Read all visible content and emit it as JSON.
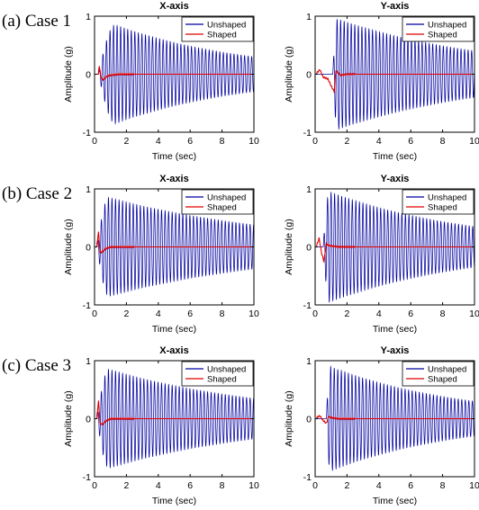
{
  "chart_data": [
    {
      "type": "line",
      "case_label": "(a) Case 1",
      "title": "X-axis",
      "xlabel": "Time (sec)",
      "ylabel": "Amplitude (g)",
      "xlim": [
        0,
        10
      ],
      "ylim": [
        -1,
        1
      ],
      "xticks": [
        "0",
        "2",
        "4",
        "6",
        "8",
        "10"
      ],
      "yticks": [
        "-1",
        "0",
        "1"
      ],
      "legend": "top-right",
      "series": [
        {
          "name": "Unshaped",
          "color": "#0000a0",
          "start": 0.25,
          "peak_time": 1.3,
          "peak": 0.85,
          "end_amp": 0.3,
          "frequency": 4.5
        },
        {
          "name": "Shaped",
          "color": "#e00000",
          "start": 0.2,
          "transient": [
            [
              0.25,
              0.04
            ],
            [
              0.3,
              0.15
            ],
            [
              0.4,
              -0.05
            ],
            [
              0.55,
              -0.1
            ],
            [
              0.7,
              -0.05
            ],
            [
              0.9,
              -0.02
            ],
            [
              1.5,
              0.0
            ],
            [
              10,
              0.0
            ]
          ]
        }
      ]
    },
    {
      "type": "line",
      "title": "Y-axis",
      "xlabel": "Time (sec)",
      "ylabel": "Amplitude (g)",
      "xlim": [
        0,
        10
      ],
      "ylim": [
        -1,
        1
      ],
      "xticks": [
        "0",
        "2",
        "4",
        "6",
        "8",
        "10"
      ],
      "yticks": [
        "-1",
        "0",
        "1"
      ],
      "legend": "top-right",
      "series": [
        {
          "name": "Unshaped",
          "color": "#0000a0",
          "start": 1.1,
          "peak_time": 1.4,
          "peak": 0.95,
          "end_amp": 0.4,
          "frequency": 4.5
        },
        {
          "name": "Shaped",
          "color": "#e00000",
          "start": 0.1,
          "transient": [
            [
              0.1,
              0.02
            ],
            [
              0.3,
              0.08
            ],
            [
              0.5,
              -0.05
            ],
            [
              0.8,
              -0.08
            ],
            [
              1.0,
              -0.2
            ],
            [
              1.2,
              -0.3
            ],
            [
              1.3,
              0.06
            ],
            [
              1.6,
              -0.02
            ],
            [
              2.0,
              0.0
            ],
            [
              10,
              0.0
            ]
          ]
        }
      ]
    },
    {
      "type": "line",
      "case_label": "(b) Case 2",
      "title": "X-axis",
      "xlabel": "Time (sec)",
      "ylabel": "Amplitude (g)",
      "xlim": [
        0,
        10
      ],
      "ylim": [
        -1,
        1
      ],
      "xticks": [
        "0",
        "2",
        "4",
        "6",
        "8",
        "10"
      ],
      "yticks": [
        "-1",
        "0",
        "1"
      ],
      "legend": "top-right",
      "series": [
        {
          "name": "Unshaped",
          "color": "#0000a0",
          "start": 0.15,
          "peak_time": 0.9,
          "peak": 0.85,
          "end_amp": 0.38,
          "frequency": 4.5
        },
        {
          "name": "Shaped",
          "color": "#e00000",
          "start": 0.15,
          "transient": [
            [
              0.15,
              0.05
            ],
            [
              0.25,
              0.25
            ],
            [
              0.35,
              -0.1
            ],
            [
              0.5,
              -0.08
            ],
            [
              0.7,
              -0.03
            ],
            [
              1.0,
              0.0
            ],
            [
              10,
              0.0
            ]
          ]
        }
      ]
    },
    {
      "type": "line",
      "title": "Y-axis",
      "xlabel": "Time (sec)",
      "ylabel": "Amplitude (g)",
      "xlim": [
        0,
        10
      ],
      "ylim": [
        -1,
        1
      ],
      "xticks": [
        "0",
        "2",
        "4",
        "6",
        "8",
        "10"
      ],
      "yticks": [
        "-1",
        "0",
        "1"
      ],
      "legend": "top-right",
      "series": [
        {
          "name": "Unshaped",
          "color": "#0000a0",
          "start": 0.5,
          "peak_time": 0.9,
          "peak": 0.95,
          "end_amp": 0.35,
          "frequency": 4.5
        },
        {
          "name": "Shaped",
          "color": "#e00000",
          "start": 0.1,
          "transient": [
            [
              0.1,
              0.03
            ],
            [
              0.25,
              0.15
            ],
            [
              0.4,
              -0.1
            ],
            [
              0.55,
              -0.25
            ],
            [
              0.7,
              0.05
            ],
            [
              0.9,
              0.02
            ],
            [
              1.5,
              0.0
            ],
            [
              10,
              0.0
            ]
          ]
        }
      ]
    },
    {
      "type": "line",
      "case_label": "(c) Case 3",
      "title": "X-axis",
      "xlabel": "Time (sec)",
      "ylabel": "Amplitude (g)",
      "xlim": [
        0,
        10
      ],
      "ylim": [
        -1,
        1
      ],
      "xticks": [
        "0",
        "2",
        "4",
        "6",
        "8",
        "10"
      ],
      "yticks": [
        "-1",
        "0",
        "1"
      ],
      "legend": "top-right",
      "series": [
        {
          "name": "Unshaped",
          "color": "#0000a0",
          "start": 0.15,
          "peak_time": 0.9,
          "peak": 0.85,
          "end_amp": 0.35,
          "frequency": 4.5
        },
        {
          "name": "Shaped",
          "color": "#e00000",
          "start": 0.15,
          "transient": [
            [
              0.15,
              0.05
            ],
            [
              0.25,
              0.3
            ],
            [
              0.35,
              -0.08
            ],
            [
              0.5,
              -0.1
            ],
            [
              0.7,
              -0.04
            ],
            [
              1.0,
              0.0
            ],
            [
              10,
              0.0
            ]
          ]
        }
      ]
    },
    {
      "type": "line",
      "title": "Y-axis",
      "xlabel": "Time (sec)",
      "ylabel": "Amplitude (g)",
      "xlim": [
        0,
        10
      ],
      "ylim": [
        -1,
        1
      ],
      "xticks": [
        "0",
        "2",
        "4",
        "6",
        "8",
        "10"
      ],
      "yticks": [
        "-1",
        "0",
        "1"
      ],
      "legend": "top-right",
      "series": [
        {
          "name": "Unshaped",
          "color": "#0000a0",
          "start": 0.7,
          "peak_time": 0.95,
          "peak": 0.9,
          "end_amp": 0.3,
          "frequency": 4.5
        },
        {
          "name": "Shaped",
          "color": "#e00000",
          "start": 0.1,
          "transient": [
            [
              0.1,
              0.02
            ],
            [
              0.3,
              0.05
            ],
            [
              0.5,
              -0.03
            ],
            [
              0.7,
              -0.08
            ],
            [
              0.85,
              0.04
            ],
            [
              1.0,
              0.02
            ],
            [
              1.5,
              0.0
            ],
            [
              10,
              0.0
            ]
          ]
        }
      ]
    }
  ]
}
